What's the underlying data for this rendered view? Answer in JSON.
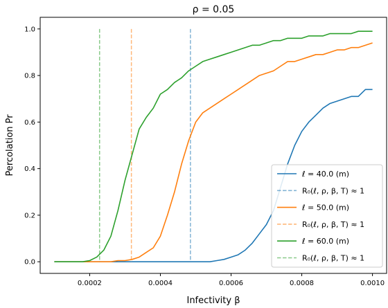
{
  "chart_data": {
    "type": "line",
    "title": "ρ =  0.05",
    "xlabel": "Infectivity β",
    "ylabel": "Percolation Pr",
    "xlim": [
      6e-05,
      0.00104
    ],
    "ylim": [
      -0.05,
      1.05
    ],
    "xticks": [
      0.0002,
      0.0004,
      0.0006,
      0.0008,
      0.001
    ],
    "xtick_labels": [
      "0.0002",
      "0.0004",
      "0.0006",
      "0.0008",
      "0.0010"
    ],
    "yticks": [
      0.0,
      0.2,
      0.4,
      0.6,
      0.8,
      1.0
    ],
    "ytick_labels": [
      "0.0",
      "0.2",
      "0.4",
      "0.6",
      "0.8",
      "1.0"
    ],
    "grid": false,
    "legend_position": "bottom-right",
    "x": [
      0.0001,
      0.00012,
      0.00014,
      0.00016,
      0.00018,
      0.0002,
      0.00022,
      0.00024,
      0.00026,
      0.00028,
      0.0003,
      0.00032,
      0.00034,
      0.00036,
      0.00038,
      0.0004,
      0.00042,
      0.00044,
      0.00046,
      0.00048,
      0.0005,
      0.00052,
      0.00054,
      0.00056,
      0.00058,
      0.0006,
      0.00062,
      0.00064,
      0.00066,
      0.00068,
      0.0007,
      0.00072,
      0.00074,
      0.00076,
      0.00078,
      0.0008,
      0.00082,
      0.00084,
      0.00086,
      0.00088,
      0.0009,
      0.00092,
      0.00094,
      0.00096,
      0.00098,
      0.001
    ],
    "series": [
      {
        "name": "ℓ =  40.0 (m)",
        "color": "#1f77b4",
        "style": "solid",
        "values": [
          0,
          0,
          0,
          0,
          0,
          0,
          0,
          0,
          0,
          0,
          0,
          0,
          0,
          0,
          0,
          0,
          0,
          0,
          0,
          0,
          0,
          0,
          0,
          0.005,
          0.01,
          0.02,
          0.03,
          0.05,
          0.08,
          0.12,
          0.16,
          0.22,
          0.32,
          0.42,
          0.5,
          0.56,
          0.6,
          0.63,
          0.66,
          0.68,
          0.69,
          0.7,
          0.71,
          0.71,
          0.74,
          0.74
        ]
      },
      {
        "name": "R₀(ℓ, ρ, β, T) ≈ 1",
        "color": "#1f77b4",
        "style": "dashed",
        "x_vertical": 0.000485
      },
      {
        "name": "ℓ =  50.0 (m)",
        "color": "#ff7f0e",
        "style": "solid",
        "values": [
          0,
          0,
          0,
          0,
          0,
          0,
          0,
          0,
          0,
          0.005,
          0.005,
          0.01,
          0.02,
          0.04,
          0.06,
          0.11,
          0.2,
          0.3,
          0.42,
          0.52,
          0.6,
          0.64,
          0.66,
          0.68,
          0.7,
          0.72,
          0.74,
          0.76,
          0.78,
          0.8,
          0.81,
          0.82,
          0.84,
          0.86,
          0.86,
          0.87,
          0.88,
          0.89,
          0.89,
          0.9,
          0.91,
          0.91,
          0.92,
          0.92,
          0.93,
          0.94
        ]
      },
      {
        "name": "R₀(ℓ, ρ, β, T) ≈ 1",
        "color": "#ff7f0e",
        "style": "dashed",
        "x_vertical": 0.000318
      },
      {
        "name": "ℓ =  60.0 (m)",
        "color": "#2ca02c",
        "style": "solid",
        "values": [
          0,
          0,
          0,
          0,
          0,
          0.005,
          0.02,
          0.05,
          0.11,
          0.22,
          0.35,
          0.46,
          0.57,
          0.62,
          0.66,
          0.72,
          0.74,
          0.77,
          0.79,
          0.82,
          0.84,
          0.86,
          0.87,
          0.88,
          0.89,
          0.9,
          0.91,
          0.92,
          0.93,
          0.93,
          0.94,
          0.95,
          0.95,
          0.96,
          0.96,
          0.96,
          0.97,
          0.97,
          0.97,
          0.98,
          0.98,
          0.98,
          0.98,
          0.99,
          0.99,
          0.99
        ]
      },
      {
        "name": "R₀(ℓ, ρ, β, T) ≈ 1",
        "color": "#2ca02c",
        "style": "dashed",
        "x_vertical": 0.000228
      }
    ]
  }
}
